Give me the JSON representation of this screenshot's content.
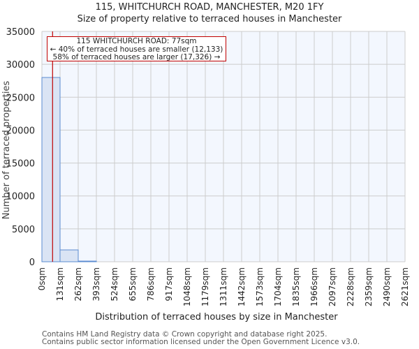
{
  "header": {
    "title": "115, WHITCHURCH ROAD, MANCHESTER, M20 1FY",
    "subtitle": "Size of property relative to terraced houses in Manchester"
  },
  "annotation": {
    "line1": "115 WHITCHURCH ROAD: 77sqm",
    "line2": "← 40% of terraced houses are smaller (12,133)",
    "line3": "58% of terraced houses are larger (17,326) →"
  },
  "footer": {
    "line1": "Contains HM Land Registry data © Crown copyright and database right 2025.",
    "line2": "Contains public sector information licensed under the Open Government Licence v3.0."
  },
  "colors": {
    "bar_fill": "#dae4f4",
    "bar_edge": "#5b8bd0",
    "plot_bg": "#f3f7fe",
    "grid": "#cccccc",
    "marker": "#c00000"
  },
  "chart_data": {
    "type": "bar",
    "title": "115, WHITCHURCH ROAD, MANCHESTER, M20 1FY",
    "subtitle": "Size of property relative to terraced houses in Manchester",
    "xlabel": "Distribution of terraced houses by size in Manchester",
    "ylabel": "Number of terraced properties",
    "categories": [
      "0sqm",
      "131sqm",
      "262sqm",
      "393sqm",
      "524sqm",
      "655sqm",
      "786sqm",
      "917sqm",
      "1048sqm",
      "1179sqm",
      "1311sqm",
      "1442sqm",
      "1573sqm",
      "1704sqm",
      "1835sqm",
      "1966sqm",
      "2097sqm",
      "2228sqm",
      "2359sqm",
      "2490sqm",
      "2621sqm"
    ],
    "values": [
      28000,
      1800,
      100,
      0,
      0,
      0,
      0,
      0,
      0,
      0,
      0,
      0,
      0,
      0,
      0,
      0,
      0,
      0,
      0,
      0
    ],
    "bin_width_sqm": 131,
    "ylim": [
      0,
      35000
    ],
    "yticks": [
      0,
      5000,
      10000,
      15000,
      20000,
      25000,
      30000,
      35000
    ],
    "grid": true,
    "marker": {
      "x_sqm": 77,
      "label": "115 WHITCHURCH ROAD: 77sqm"
    }
  }
}
